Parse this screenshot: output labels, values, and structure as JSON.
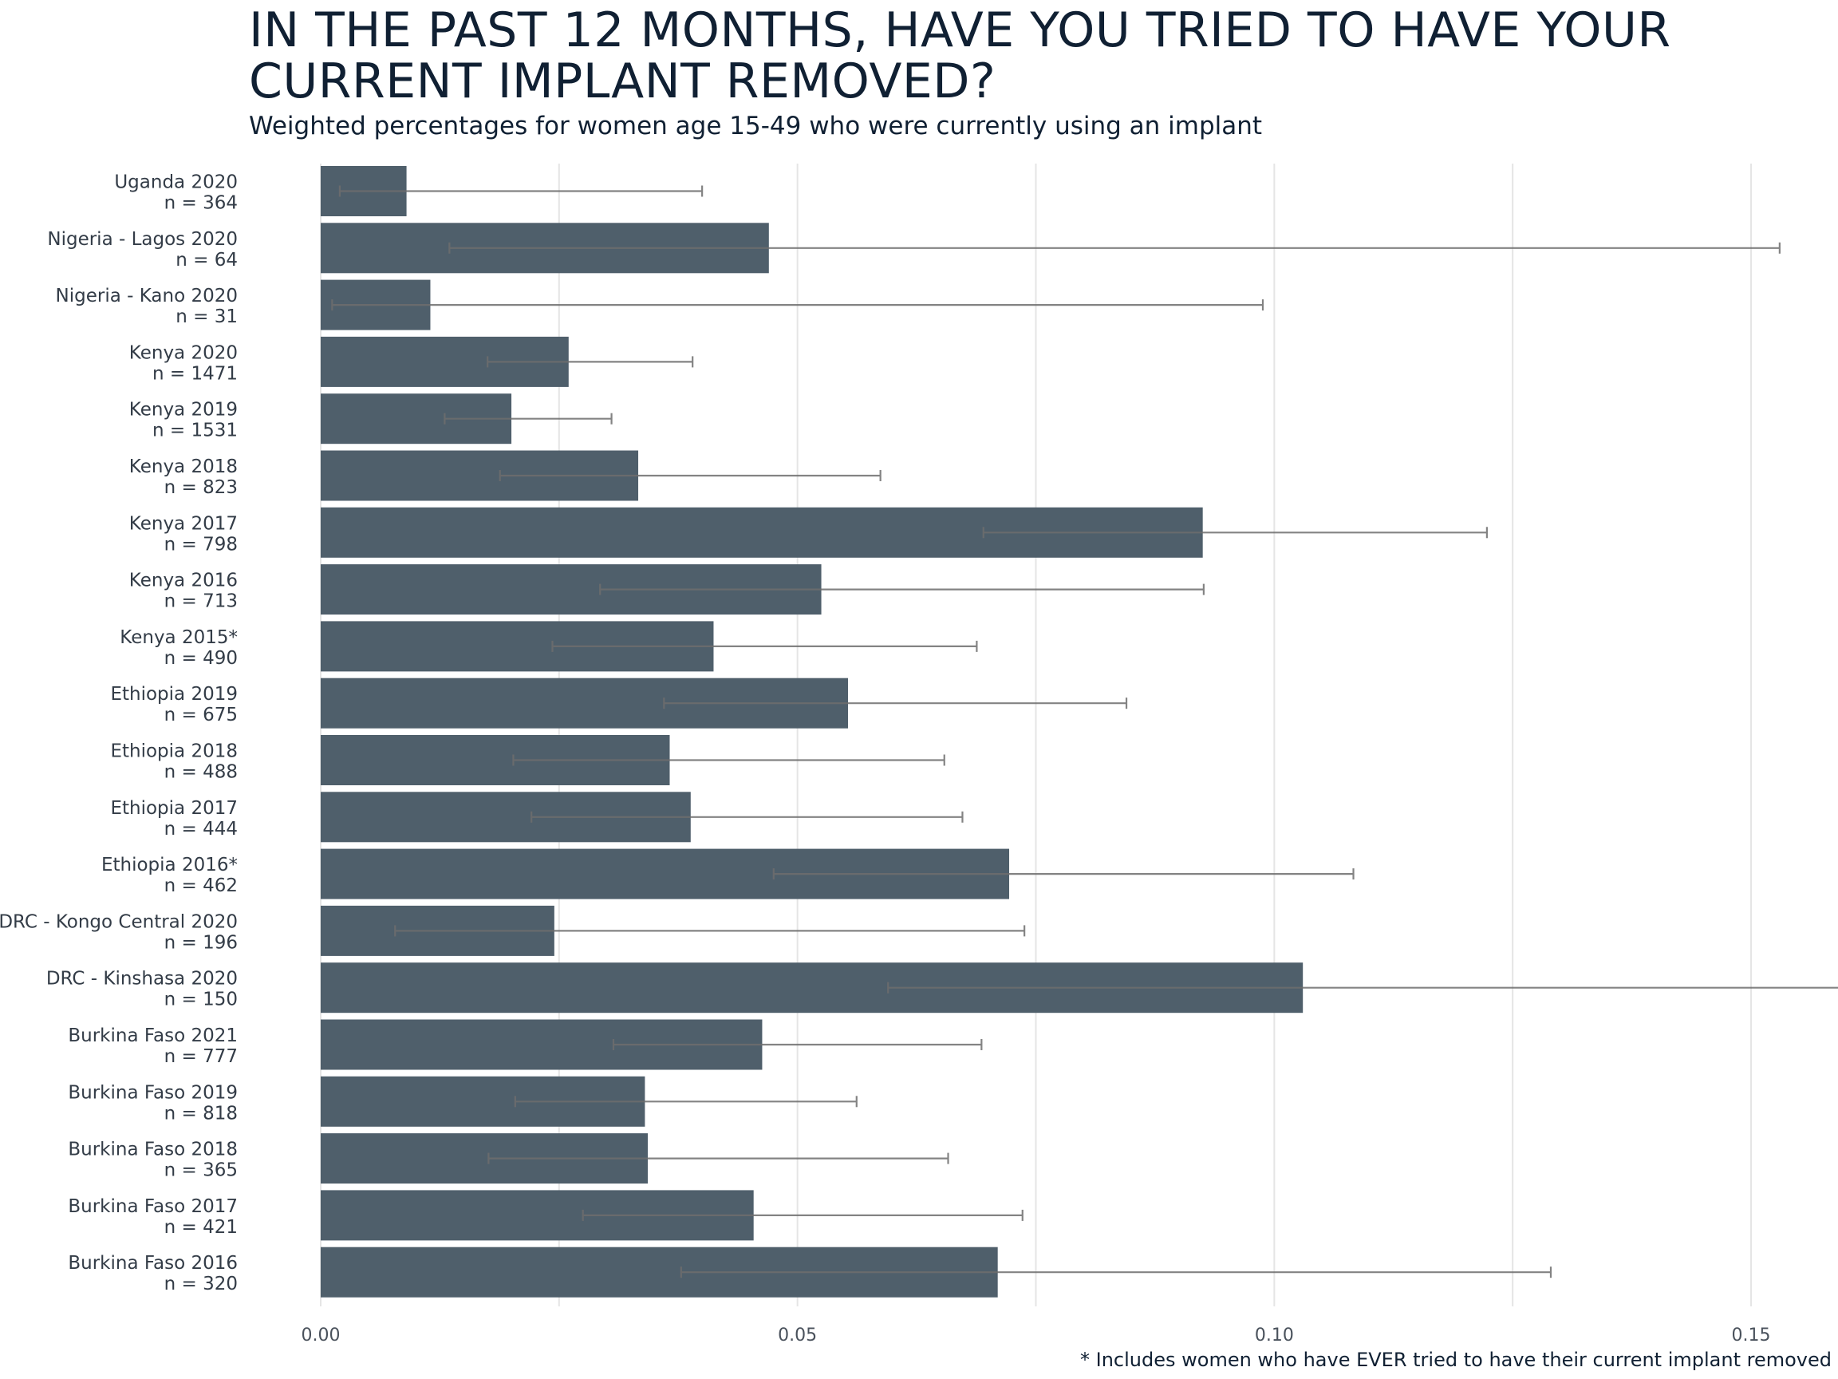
{
  "title": "IN THE PAST 12 MONTHS, HAVE YOU TRIED TO HAVE YOUR CURRENT IMPLANT REMOVED?",
  "subtitle": "Weighted percentages for women age 15-49 who were currently using an implant",
  "footnote": "* Includes women who have EVER tried to have their current implant removed",
  "colors": {
    "bar": "#4f5f6b",
    "errorbar": "#6e6e6e",
    "grid": "#e5e5e5"
  },
  "chart_data": {
    "type": "bar",
    "orientation": "horizontal",
    "xlim": [
      0,
      0.175
    ],
    "xticks": [
      "0.00",
      "0.05",
      "0.10",
      "0.15"
    ],
    "xtick_values": [
      0,
      0.05,
      0.1,
      0.15
    ],
    "grid": true,
    "categories": [
      {
        "name": "Uganda 2020",
        "n": "n = 364",
        "value": 0.009,
        "low": 0.002,
        "high": 0.04
      },
      {
        "name": "Nigeria - Lagos 2020",
        "n": "n = 64",
        "value": 0.047,
        "low": 0.0135,
        "high": 0.153
      },
      {
        "name": "Nigeria - Kano 2020",
        "n": "n = 31",
        "value": 0.0115,
        "low": 0.0012,
        "high": 0.0988
      },
      {
        "name": "Kenya 2020",
        "n": "n = 1471",
        "value": 0.026,
        "low": 0.0175,
        "high": 0.039
      },
      {
        "name": "Kenya 2019",
        "n": "n = 1531",
        "value": 0.02,
        "low": 0.013,
        "high": 0.0305
      },
      {
        "name": "Kenya 2018",
        "n": "n = 823",
        "value": 0.0333,
        "low": 0.0188,
        "high": 0.0587
      },
      {
        "name": "Kenya 2017",
        "n": "n = 798",
        "value": 0.0925,
        "low": 0.0695,
        "high": 0.1223
      },
      {
        "name": "Kenya 2016",
        "n": "n = 713",
        "value": 0.0525,
        "low": 0.0293,
        "high": 0.0926
      },
      {
        "name": "Kenya 2015*",
        "n": "n = 490",
        "value": 0.0412,
        "low": 0.0243,
        "high": 0.0688
      },
      {
        "name": "Ethiopia 2019",
        "n": "n = 675",
        "value": 0.0553,
        "low": 0.036,
        "high": 0.0845
      },
      {
        "name": "Ethiopia 2018",
        "n": "n = 488",
        "value": 0.0366,
        "low": 0.0202,
        "high": 0.0654
      },
      {
        "name": "Ethiopia 2017",
        "n": "n = 444",
        "value": 0.0388,
        "low": 0.0221,
        "high": 0.0673
      },
      {
        "name": "Ethiopia 2016*",
        "n": "n = 462",
        "value": 0.0722,
        "low": 0.0475,
        "high": 0.1083
      },
      {
        "name": "DRC - Kongo Central 2020",
        "n": "n = 196",
        "value": 0.0245,
        "low": 0.0078,
        "high": 0.0738
      },
      {
        "name": "DRC - Kinshasa 2020",
        "n": "n = 150",
        "value": 0.103,
        "low": 0.0595,
        "high": 0.172
      },
      {
        "name": "Burkina Faso 2021",
        "n": "n = 777",
        "value": 0.0463,
        "low": 0.0307,
        "high": 0.0693
      },
      {
        "name": "Burkina Faso 2019",
        "n": "n = 818",
        "value": 0.034,
        "low": 0.0204,
        "high": 0.0562
      },
      {
        "name": "Burkina Faso 2018",
        "n": "n = 365",
        "value": 0.0343,
        "low": 0.0176,
        "high": 0.0658
      },
      {
        "name": "Burkina Faso 2017",
        "n": "n = 421",
        "value": 0.0454,
        "low": 0.0275,
        "high": 0.0736
      },
      {
        "name": "Burkina Faso 2016",
        "n": "n = 320",
        "value": 0.071,
        "low": 0.0378,
        "high": 0.129
      }
    ]
  }
}
